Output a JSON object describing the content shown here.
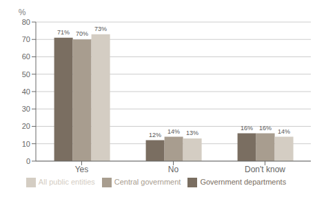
{
  "chart_data": {
    "type": "bar",
    "ylabel": "%",
    "categories": [
      "Yes",
      "No",
      "Don't know"
    ],
    "series": [
      {
        "name": "Government departments",
        "color": "#7a6e61",
        "values": [
          71,
          12,
          16
        ],
        "value_labels": [
          "71%",
          "12%",
          "16%"
        ]
      },
      {
        "name": "Central government",
        "color": "#a89d8f",
        "values": [
          70,
          14,
          16
        ],
        "value_labels": [
          "70%",
          "14%",
          "16%"
        ]
      },
      {
        "name": "All public entities",
        "color": "#d4cdc3",
        "values": [
          73,
          13,
          14
        ],
        "value_labels": [
          "73%",
          "13%",
          "14%"
        ]
      }
    ],
    "ylim": [
      0,
      80
    ],
    "yticks": [
      0,
      10,
      20,
      30,
      40,
      50,
      60,
      70,
      80
    ],
    "grid": true,
    "legend": "bottom",
    "data_labels": true
  }
}
